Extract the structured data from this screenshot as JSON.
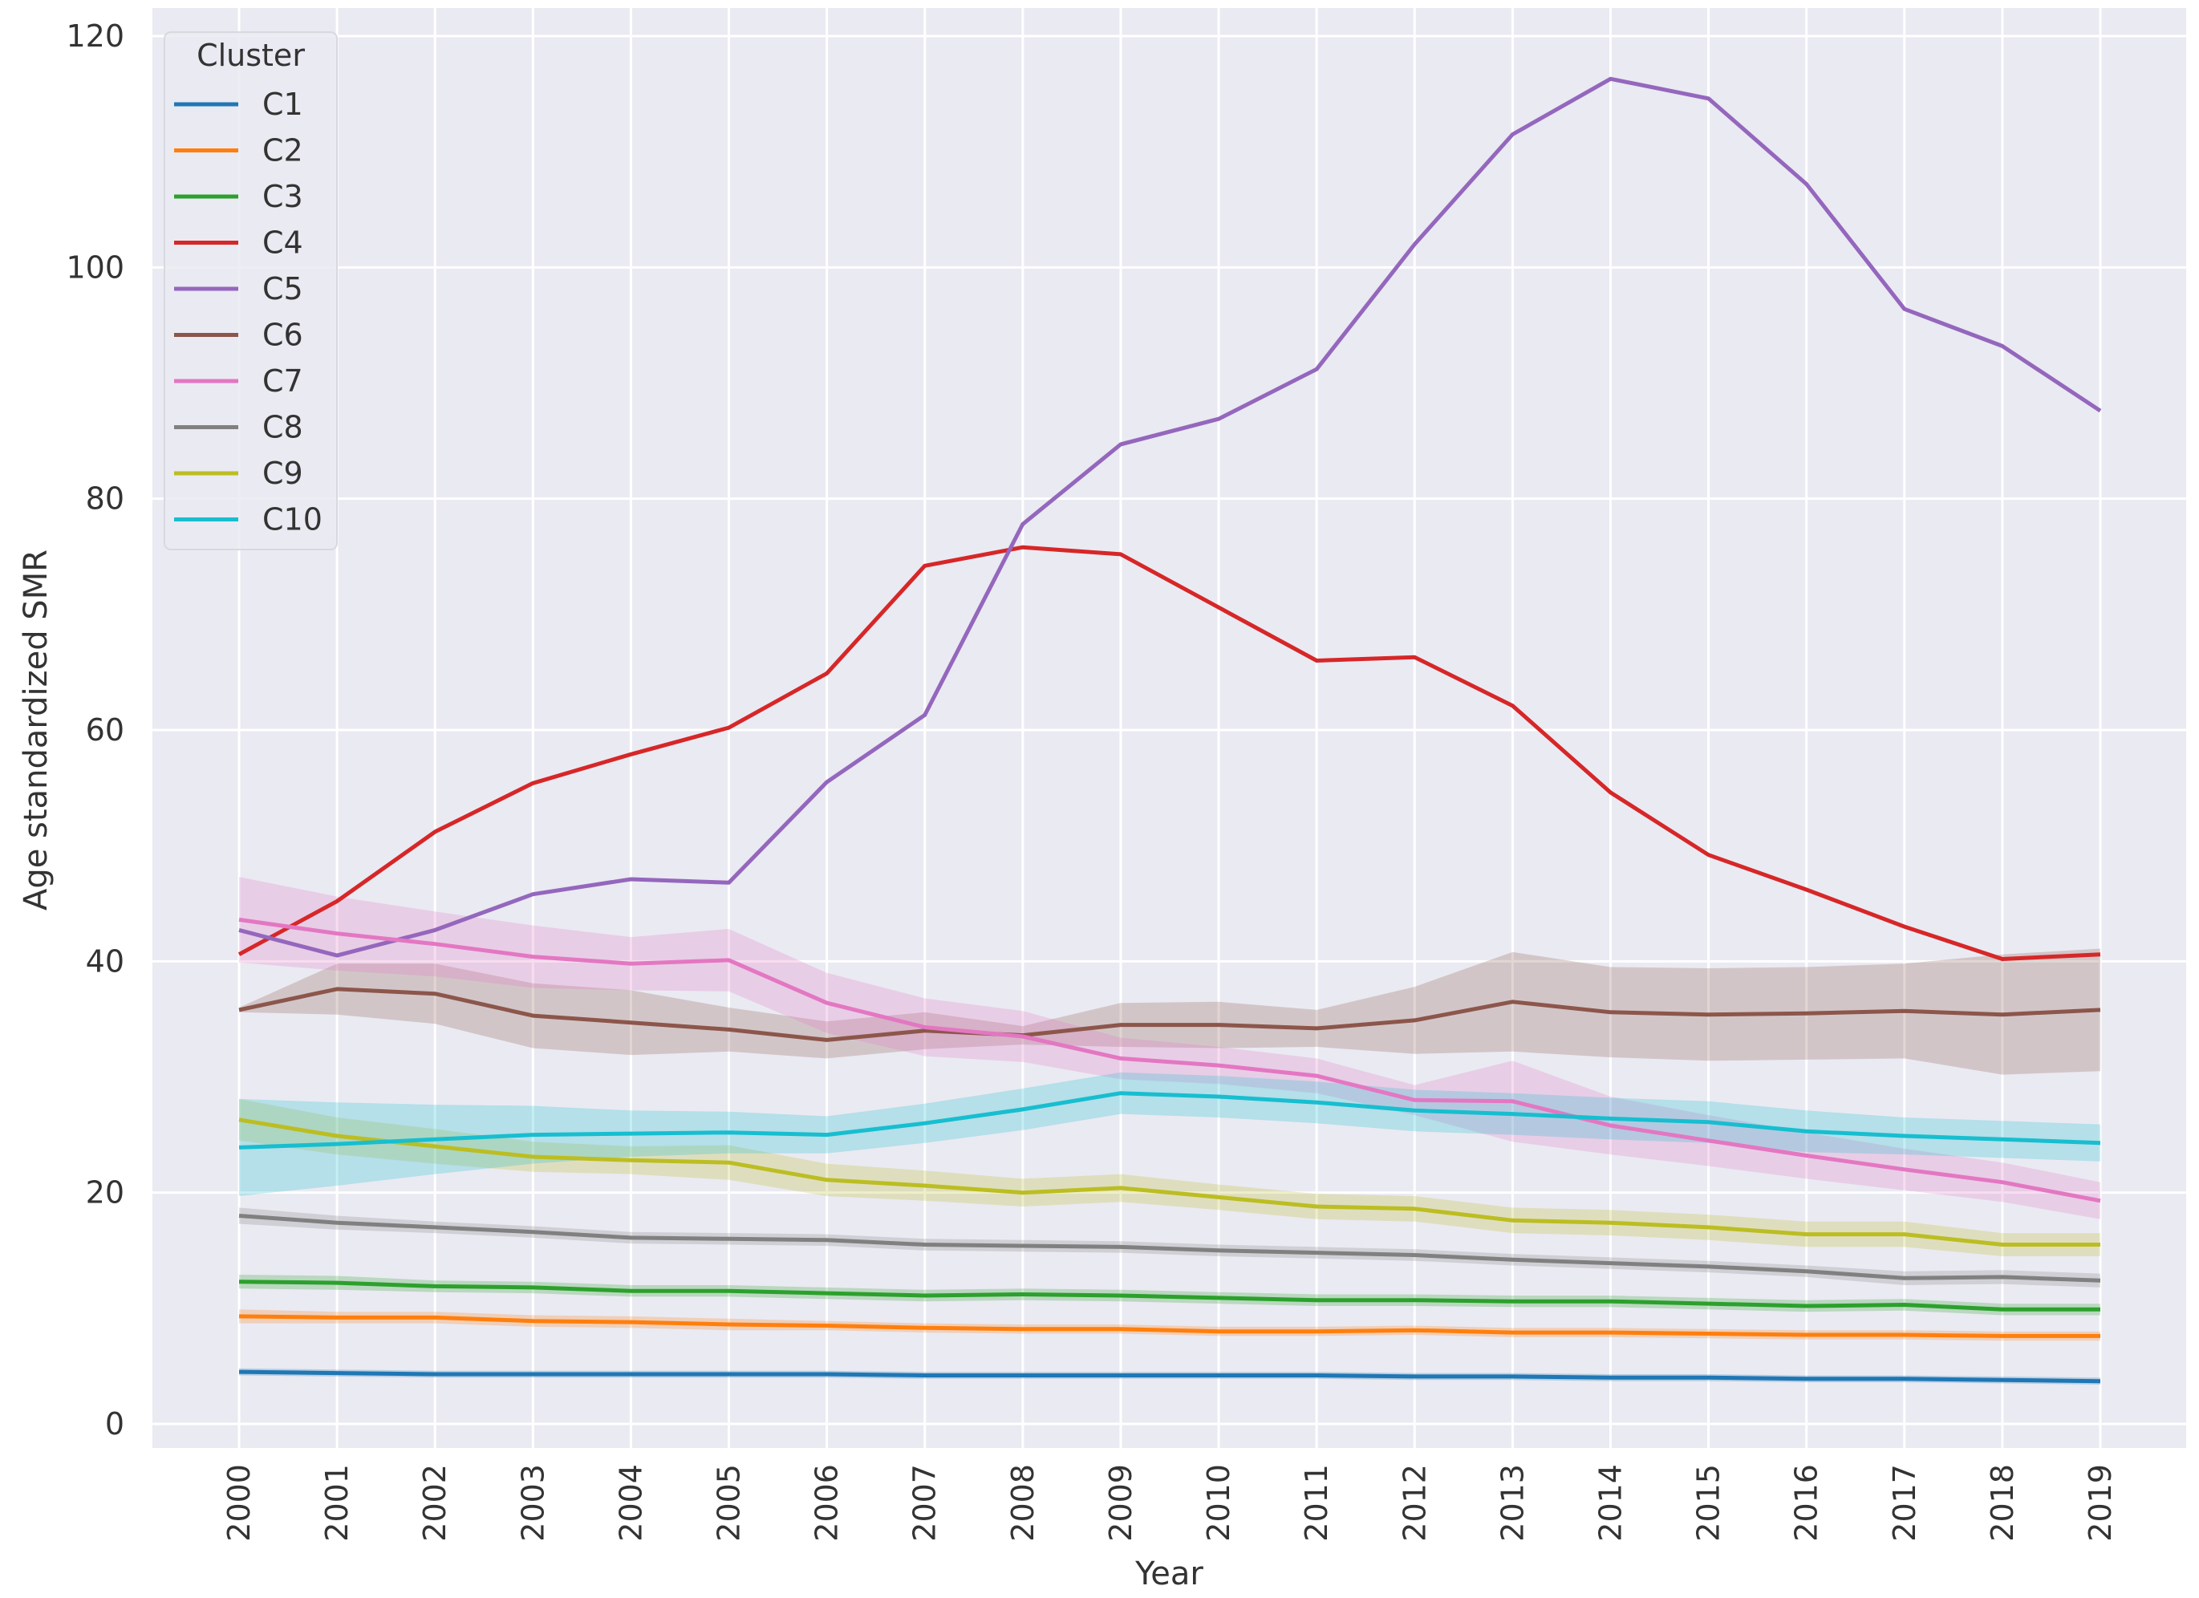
{
  "chart_data": {
    "type": "line",
    "title": "",
    "xlabel": "Year",
    "ylabel": "Age standardized SMR",
    "ylim": [
      -2,
      121
    ],
    "yticks": [
      0,
      20,
      40,
      60,
      80,
      100,
      120
    ],
    "grid": true,
    "background": "#eaeaf2",
    "legend": {
      "title": "Cluster",
      "placement": "top-left"
    },
    "categories": [
      "2000",
      "2001",
      "2002",
      "2003",
      "2004",
      "2005",
      "2006",
      "2007",
      "2008",
      "2009",
      "2010",
      "2011",
      "2012",
      "2013",
      "2014",
      "2015",
      "2016",
      "2017",
      "2018",
      "2019"
    ],
    "series": [
      {
        "name": "C1",
        "color": "#1f77b4",
        "values": [
          4.5,
          4.4,
          4.3,
          4.3,
          4.3,
          4.3,
          4.3,
          4.2,
          4.2,
          4.2,
          4.2,
          4.2,
          4.1,
          4.1,
          4.0,
          4.0,
          3.9,
          3.9,
          3.8,
          3.7
        ],
        "band": [
          0.3,
          0.3,
          0.3,
          0.3,
          0.3,
          0.3,
          0.3,
          0.3,
          0.3,
          0.3,
          0.3,
          0.3,
          0.3,
          0.3,
          0.3,
          0.3,
          0.3,
          0.3,
          0.3,
          0.3
        ]
      },
      {
        "name": "C2",
        "color": "#ff7f0e",
        "values": [
          9.3,
          9.2,
          9.2,
          8.9,
          8.8,
          8.6,
          8.5,
          8.3,
          8.2,
          8.2,
          8.0,
          8.0,
          8.1,
          7.9,
          7.9,
          7.8,
          7.7,
          7.7,
          7.6,
          7.6
        ],
        "band": [
          0.6,
          0.5,
          0.5,
          0.5,
          0.5,
          0.5,
          0.4,
          0.4,
          0.4,
          0.4,
          0.4,
          0.4,
          0.4,
          0.4,
          0.4,
          0.4,
          0.4,
          0.4,
          0.4,
          0.4
        ]
      },
      {
        "name": "C3",
        "color": "#2ca02c",
        "values": [
          12.3,
          12.2,
          11.9,
          11.8,
          11.5,
          11.5,
          11.3,
          11.1,
          11.2,
          11.1,
          10.9,
          10.7,
          10.7,
          10.6,
          10.6,
          10.4,
          10.2,
          10.3,
          9.9,
          9.9
        ],
        "band": [
          0.6,
          0.6,
          0.5,
          0.5,
          0.5,
          0.5,
          0.5,
          0.5,
          0.5,
          0.5,
          0.5,
          0.5,
          0.5,
          0.5,
          0.5,
          0.5,
          0.5,
          0.5,
          0.5,
          0.5
        ]
      },
      {
        "name": "C4",
        "color": "#d62728",
        "values": [
          40.6,
          45.2,
          51.2,
          55.4,
          57.9,
          60.2,
          64.9,
          74.2,
          75.8,
          75.2,
          70.6,
          66.0,
          66.3,
          62.1,
          54.6,
          49.2,
          46.2,
          43.0,
          40.2,
          40.6
        ],
        "band": [
          0,
          0,
          0,
          0,
          0,
          0,
          0,
          0,
          0,
          0,
          0,
          0,
          0,
          0,
          0,
          0,
          0,
          0,
          0,
          0
        ]
      },
      {
        "name": "C5",
        "color": "#9467bd",
        "values": [
          42.7,
          40.5,
          42.7,
          45.8,
          47.1,
          46.8,
          55.5,
          61.3,
          77.8,
          84.7,
          86.9,
          91.2,
          102.0,
          111.5,
          116.3,
          114.6,
          107.2,
          96.4,
          93.2,
          87.6
        ],
        "band": [
          0,
          0,
          0,
          0,
          0,
          0,
          0,
          0,
          0,
          0,
          0,
          0,
          0,
          0,
          0,
          0,
          0,
          0,
          0,
          0
        ]
      },
      {
        "name": "C6",
        "color": "#8c564b",
        "values": [
          35.8,
          37.6,
          37.2,
          35.3,
          34.7,
          34.1,
          33.2,
          34.0,
          33.6,
          34.5,
          34.5,
          34.2,
          34.9,
          36.5,
          35.6,
          35.4,
          35.5,
          35.7,
          35.4,
          35.8
        ],
        "band": [
          0.2,
          2.2,
          2.6,
          2.8,
          2.8,
          1.9,
          1.6,
          1.6,
          0.8,
          1.9,
          2.0,
          1.6,
          2.9,
          4.3,
          3.9,
          4.0,
          4.0,
          4.1,
          5.2,
          5.3
        ]
      },
      {
        "name": "C7",
        "color": "#e377c2",
        "values": [
          43.6,
          42.4,
          41.5,
          40.4,
          39.8,
          40.1,
          36.4,
          34.3,
          33.5,
          31.6,
          31.0,
          30.1,
          28.0,
          27.9,
          25.8,
          24.5,
          23.2,
          22.0,
          20.9,
          19.3
        ],
        "band": [
          3.7,
          3.2,
          2.8,
          2.7,
          2.3,
          2.7,
          2.6,
          2.5,
          2.2,
          1.8,
          1.6,
          1.5,
          1.3,
          3.5,
          2.5,
          2.2,
          2.0,
          1.8,
          1.7,
          1.6
        ]
      },
      {
        "name": "C8",
        "color": "#808080",
        "values": [
          18.0,
          17.4,
          17.0,
          16.6,
          16.1,
          16.0,
          15.9,
          15.5,
          15.4,
          15.3,
          15.0,
          14.8,
          14.6,
          14.2,
          13.9,
          13.6,
          13.2,
          12.6,
          12.7,
          12.4
        ],
        "band": [
          0.7,
          0.6,
          0.5,
          0.5,
          0.5,
          0.5,
          0.5,
          0.5,
          0.5,
          0.5,
          0.5,
          0.5,
          0.5,
          0.5,
          0.5,
          0.5,
          0.5,
          0.6,
          0.6,
          0.6
        ]
      },
      {
        "name": "C9",
        "color": "#bcbd22",
        "values": [
          26.3,
          24.9,
          24.0,
          23.1,
          22.8,
          22.6,
          21.1,
          20.6,
          20.0,
          20.4,
          19.6,
          18.8,
          18.6,
          17.6,
          17.4,
          17.0,
          16.4,
          16.4,
          15.5,
          15.5
        ],
        "band": [
          1.8,
          1.6,
          1.5,
          1.3,
          1.2,
          1.5,
          1.4,
          1.3,
          1.2,
          1.2,
          1.1,
          1.1,
          1.1,
          1.1,
          1.1,
          1.1,
          1.1,
          1.1,
          1.0,
          1.0
        ]
      },
      {
        "name": "C10",
        "color": "#17becf",
        "values": [
          23.9,
          24.2,
          24.6,
          25.0,
          25.1,
          25.2,
          25.0,
          26.0,
          27.2,
          28.6,
          28.3,
          27.8,
          27.1,
          26.8,
          26.4,
          26.1,
          25.3,
          24.9,
          24.6,
          24.3
        ],
        "band": [
          4.2,
          3.6,
          3.0,
          2.5,
          2.0,
          1.8,
          1.6,
          1.7,
          1.8,
          1.8,
          1.8,
          1.8,
          1.8,
          1.8,
          1.8,
          1.8,
          1.8,
          1.6,
          1.6,
          1.6
        ]
      }
    ]
  }
}
